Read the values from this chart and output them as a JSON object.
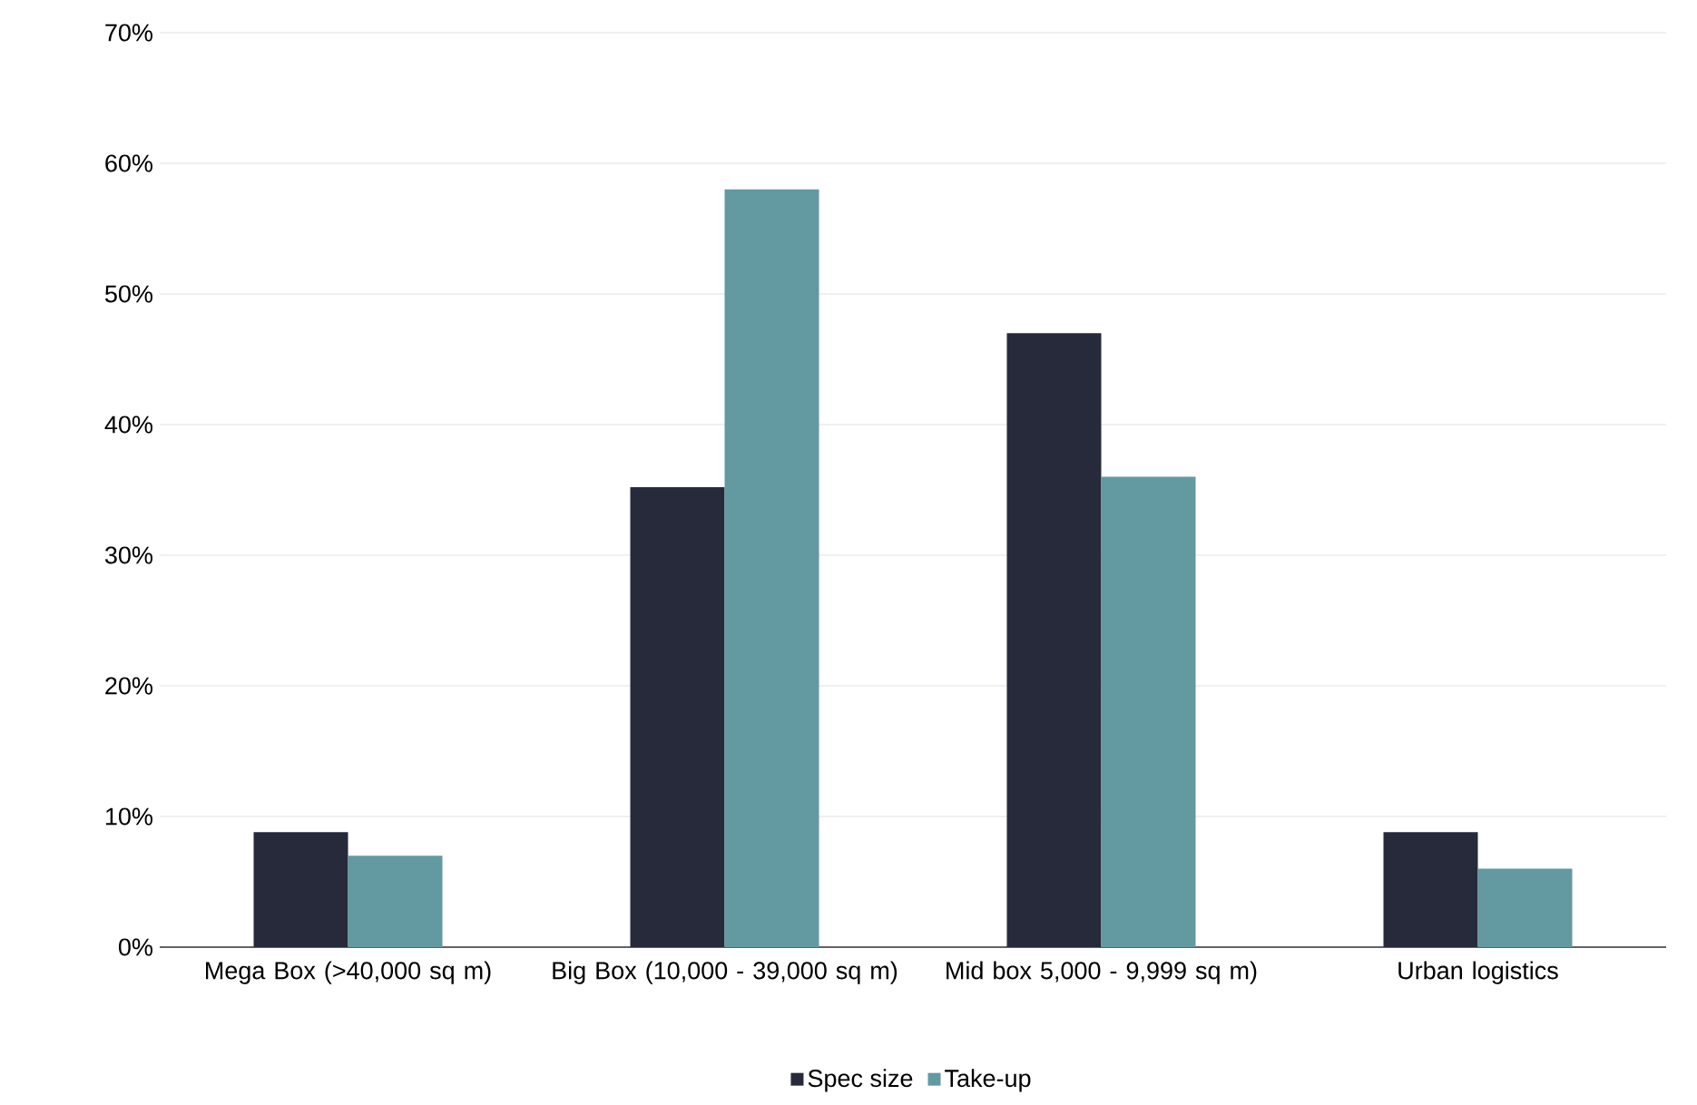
{
  "chart_data": {
    "type": "bar",
    "categories": [
      "Mega Box (>40,000 sq m)",
      "Big Box (10,000 - 39,000 sq m)",
      "Mid box 5,000 - 9,999 sq m)",
      "Urban logistics"
    ],
    "series": [
      {
        "name": "Spec size",
        "color": "#262a3b",
        "values": [
          8.8,
          35.2,
          47.0,
          8.8
        ]
      },
      {
        "name": "Take-up",
        "color": "#6399a1",
        "values": [
          7.0,
          58.0,
          36.0,
          6.0
        ]
      }
    ],
    "ylim": [
      0,
      70
    ],
    "yticks": [
      {
        "value": 0,
        "label": "0%"
      },
      {
        "value": 10,
        "label": "10%"
      },
      {
        "value": 20,
        "label": "20%"
      },
      {
        "value": 30,
        "label": "30%"
      },
      {
        "value": 40,
        "label": "40%"
      },
      {
        "value": 50,
        "label": "50%"
      },
      {
        "value": 60,
        "label": "60%"
      },
      {
        "value": 70,
        "label": "70%"
      }
    ],
    "grid": "y",
    "legend": "bottom"
  }
}
